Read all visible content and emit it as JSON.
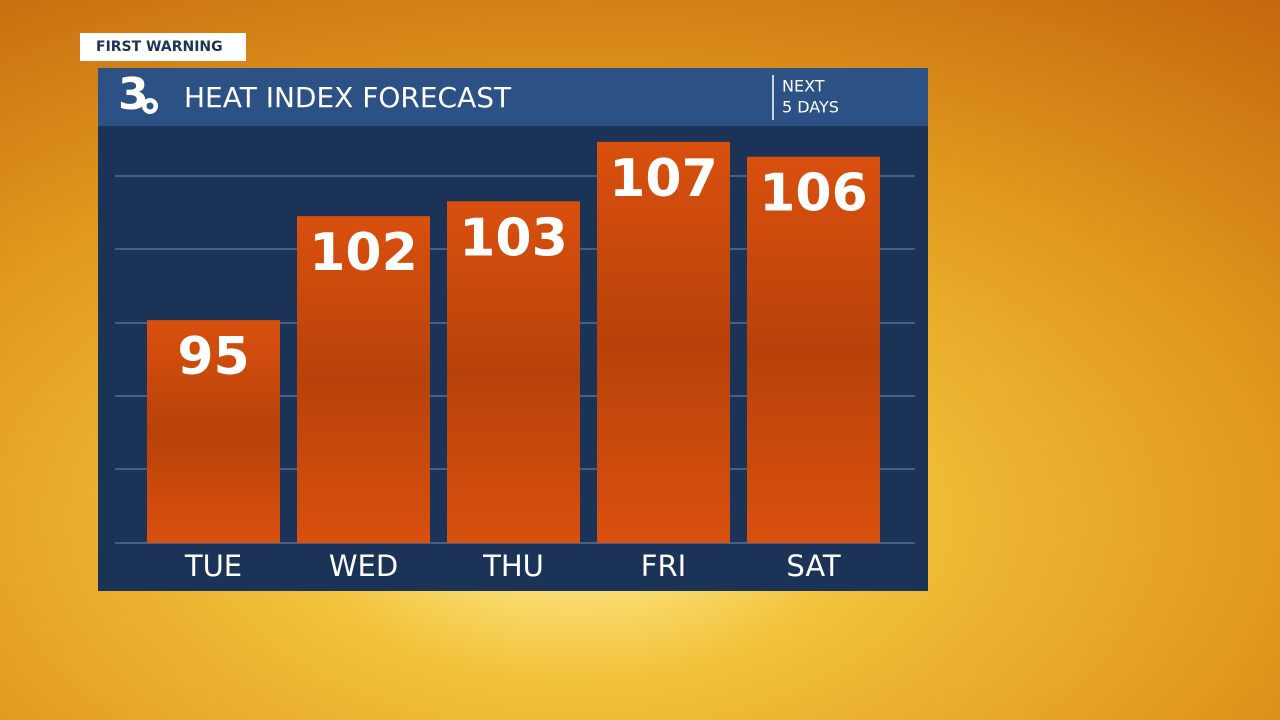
{
  "badge": "FIRST WARNING",
  "logo": "3",
  "subtitle_lines": [
    "NEXT",
    "5 DAYS"
  ],
  "chart_data": {
    "type": "bar",
    "title": "HEAT INDEX FORECAST",
    "categories": [
      "TUE",
      "WED",
      "THU",
      "FRI",
      "SAT"
    ],
    "values": [
      95,
      102,
      103,
      107,
      106
    ],
    "color": "#d4490c",
    "ylim": [
      80,
      108
    ]
  }
}
